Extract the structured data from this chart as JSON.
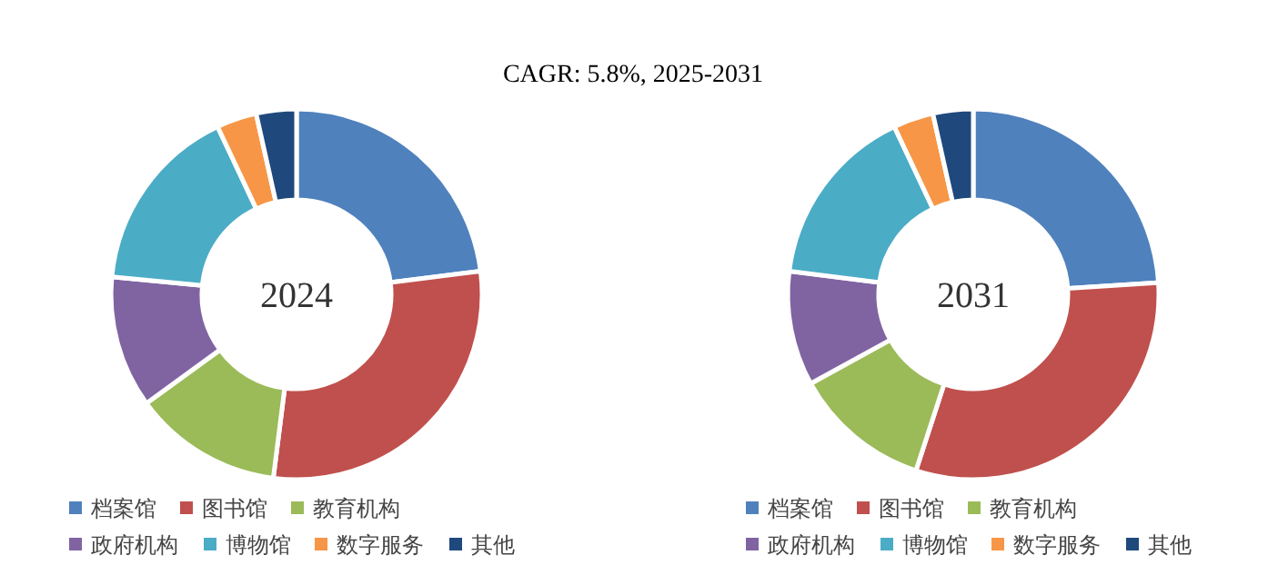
{
  "chart_data": [
    {
      "type": "donut",
      "title": "CAGR:  5.8%, 2025-2031",
      "annotations": [
        "2024"
      ],
      "categories": [
        "档案馆",
        "图书馆",
        "教育机构",
        "政府机构",
        "博物馆",
        "数字服务",
        "其他"
      ],
      "values": [
        23,
        29,
        13,
        11.5,
        16.5,
        3.5,
        3.5
      ],
      "colors": [
        "#4f81bd",
        "#c0504d",
        "#9bbb59",
        "#8064a2",
        "#4bacc6",
        "#f79646",
        "#1f497d"
      ],
      "legend": "bottom"
    },
    {
      "type": "donut",
      "annotations": [
        "2031"
      ],
      "categories": [
        "档案馆",
        "图书馆",
        "教育机构",
        "政府机构",
        "博物馆",
        "数字服务",
        "其他"
      ],
      "values": [
        24,
        31,
        12,
        10,
        16,
        3.5,
        3.5
      ],
      "colors": [
        "#4f81bd",
        "#c0504d",
        "#9bbb59",
        "#8064a2",
        "#4bacc6",
        "#f79646",
        "#1f497d"
      ],
      "legend": "bottom"
    }
  ]
}
